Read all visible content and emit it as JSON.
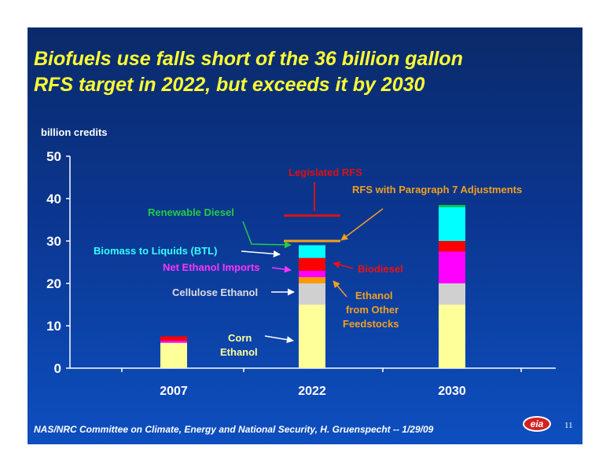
{
  "slide": {
    "title_line1": "Biofuels use falls short of the 36 billion gallon",
    "title_line2": "RFS target in 2022, but exceeds it by 2030",
    "footer": "NAS/NRC Committee on Climate, Energy and National Security, H. Gruenspecht -- 1/29/09",
    "page_number": "11",
    "logo_text": "eia"
  },
  "chart_data": {
    "type": "bar",
    "stacked": true,
    "ylabel": "billion credits",
    "ylim": [
      0,
      50
    ],
    "yticks": [
      0,
      10,
      20,
      30,
      40,
      50
    ],
    "categories": [
      "2007",
      "2022",
      "2030"
    ],
    "series": [
      {
        "name": "Corn Ethanol",
        "color": "#ffff99",
        "values": [
          6,
          15,
          15
        ]
      },
      {
        "name": "Cellulose Ethanol",
        "color": "#d0d0d0",
        "values": [
          0,
          5,
          5
        ]
      },
      {
        "name": "Ethanol from Other Feedstocks",
        "color": "#ff9900",
        "values": [
          0,
          1.5,
          0
        ]
      },
      {
        "name": "Net Ethanol Imports",
        "color": "#ff00ff",
        "values": [
          0.5,
          1.5,
          7.5
        ]
      },
      {
        "name": "Biodiesel",
        "color": "#ff0000",
        "values": [
          1,
          3,
          2.5
        ]
      },
      {
        "name": "Biomass to Liquids (BTL)",
        "color": "#00ffff",
        "values": [
          0,
          3,
          8
        ]
      },
      {
        "name": "Renewable Diesel",
        "color": "#00cc44",
        "values": [
          0,
          0,
          0.5
        ]
      }
    ],
    "reference_lines": [
      {
        "name": "Legislated RFS",
        "value": 36,
        "category": "2022",
        "color": "#dd1111"
      },
      {
        "name": "RFS with Paragraph 7 Adjustments",
        "value": 30,
        "category": "2022",
        "color": "#f0a020"
      }
    ],
    "annotations": [
      {
        "text": "Legislated RFS",
        "color": "#dd1111"
      },
      {
        "text": "RFS with Paragraph 7 Adjustments",
        "color": "#f0a020"
      },
      {
        "text": "Renewable Diesel",
        "color": "#22cc44"
      },
      {
        "text": "Biomass to Liquids (BTL)",
        "color": "#33ffff"
      },
      {
        "text": "Net Ethanol Imports",
        "color": "#ff33ff"
      },
      {
        "text": "Biodiesel",
        "color": "#ee1111"
      },
      {
        "text": "Cellulose Ethanol",
        "color": "#dddddd"
      },
      {
        "text": "Ethanol",
        "color": "#f0a020"
      },
      {
        "text": "from Other",
        "color": "#f0a020"
      },
      {
        "text": "Feedstocks",
        "color": "#f0a020"
      },
      {
        "text": "Corn",
        "color": "#ffff99"
      },
      {
        "text": "Ethanol",
        "color": "#ffff99"
      }
    ]
  }
}
